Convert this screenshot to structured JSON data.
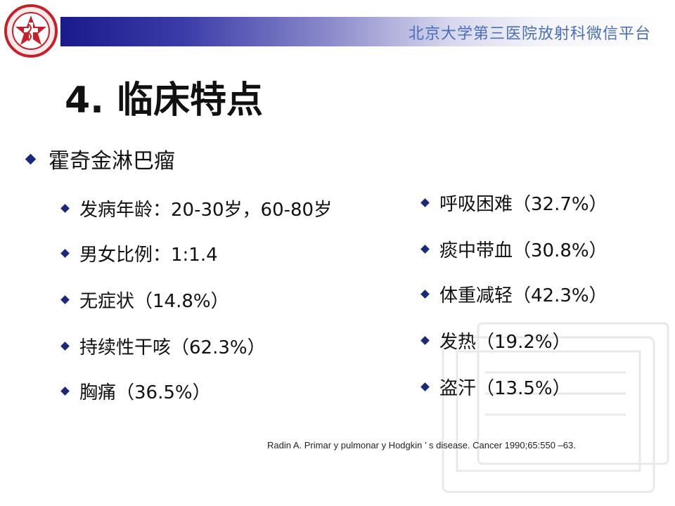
{
  "header": {
    "platform_title": "北京大学第三医院放射科微信平台",
    "logo_text": "Peking University Third Hospital"
  },
  "slide": {
    "title": "4. 临床特点",
    "main_bullet": "霍奇金淋巴瘤",
    "left_items": [
      "发病年龄：20-30岁，60-80岁",
      "男女比例：1:1.4",
      "无症状（14.8%）",
      "持续性干咳（62.3%）",
      "胸痛（36.5%）"
    ],
    "right_items": [
      "呼吸困难（32.7%）",
      "痰中带血（30.8%）",
      "体重减轻（42.3%）",
      "发热（19.2%）",
      "盗汗（13.5%）"
    ],
    "reference": "Radin A. Primar y pulmonar y Hodgkin ’ s disease. Cancer 1990;65:550 –63."
  },
  "colors": {
    "banner_dark": "#1a1a8c",
    "banner_title": "#4a6fb8",
    "bullet": "#1a2a7a",
    "logo_red": "#c8202a"
  }
}
